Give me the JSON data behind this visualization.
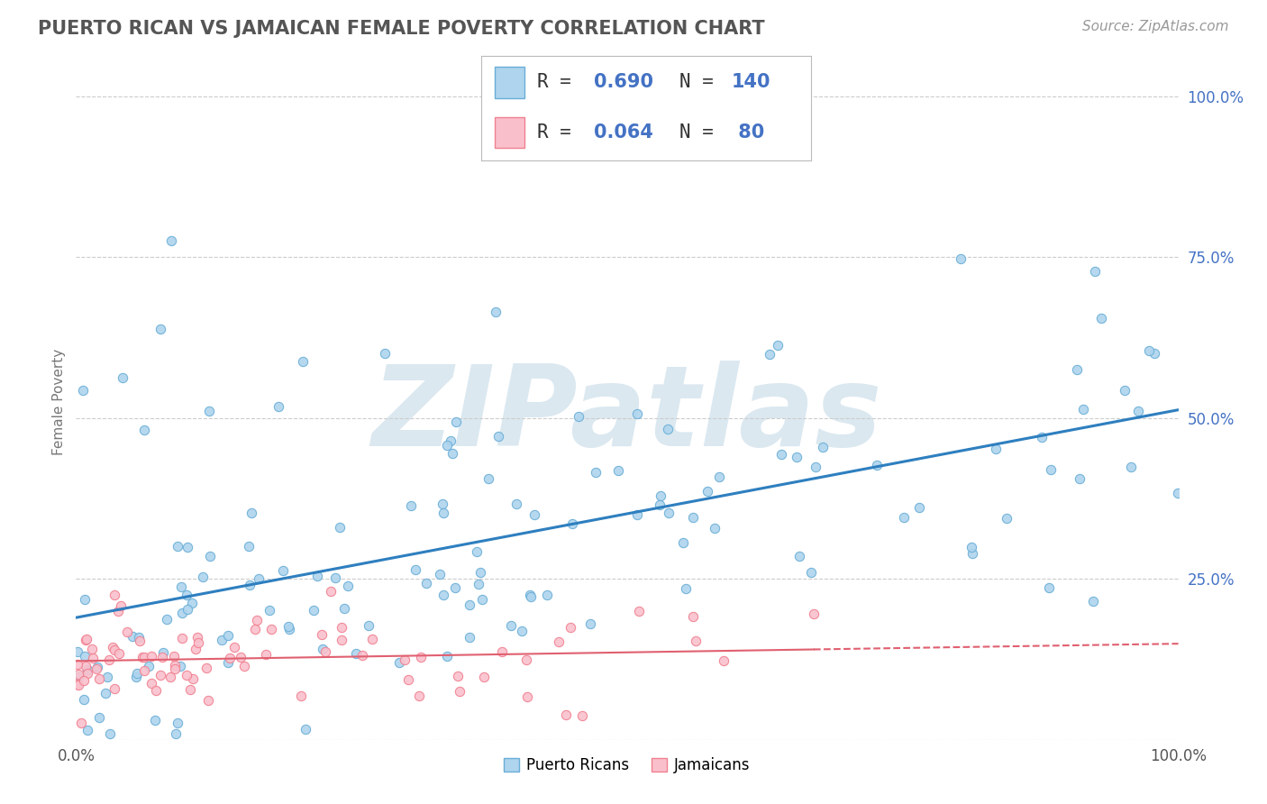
{
  "title": "PUERTO RICAN VS JAMAICAN FEMALE POVERTY CORRELATION CHART",
  "source": "Source: ZipAtlas.com",
  "ylabel": "Female Poverty",
  "xlim": [
    0.0,
    1.0
  ],
  "ylim": [
    0.0,
    1.05
  ],
  "yticks": [
    0.0,
    0.25,
    0.5,
    0.75,
    1.0
  ],
  "ytick_labels": [
    "",
    "25.0%",
    "50.0%",
    "75.0%",
    "100.0%"
  ],
  "xtick_labels": [
    "0.0%",
    "100.0%"
  ],
  "pr_R": 0.69,
  "pr_N": 140,
  "jam_R": 0.064,
  "jam_N": 80,
  "pr_color": "#6aaed6",
  "pr_face": "#aed4ee",
  "jam_color": "#f08090",
  "jam_face": "#f9c0cc",
  "trend_pr_color": "#2e7fbf",
  "trend_jam_color": "#e06070",
  "watermark_color": "#c8d8e8",
  "background_color": "#ffffff",
  "title_color": "#555555",
  "legend_r_color": "#4472c4",
  "legend_n_color": "#4472c4"
}
